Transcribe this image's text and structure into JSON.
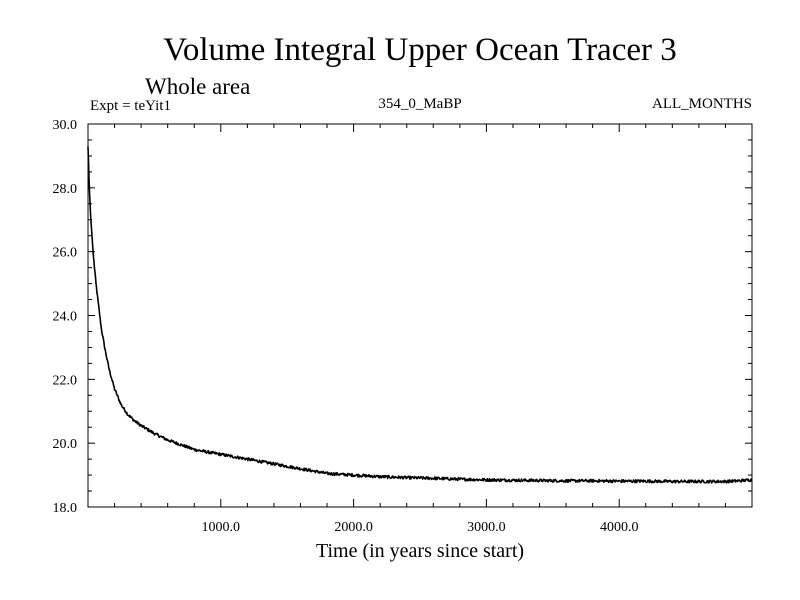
{
  "chart_data": {
    "type": "line",
    "title": "Volume Integral Upper Ocean Tracer 3",
    "subtitle": "Whole area",
    "experiment": "Expt = teYit1",
    "run_label": "354_0_MaBP",
    "months_label": "ALL_MONTHS",
    "xlabel": "Time (in years since start)",
    "ylabel": "",
    "xlim": [
      0,
      5000
    ],
    "ylim": [
      18.0,
      30.0
    ],
    "x_ticks": [
      1000,
      2000,
      3000,
      4000
    ],
    "x_tick_labels": [
      "1000.0",
      "2000.0",
      "3000.0",
      "4000.0"
    ],
    "y_ticks": [
      18,
      20,
      22,
      24,
      26,
      28,
      30
    ],
    "y_tick_labels": [
      "18.0",
      "20.0",
      "22.0",
      "24.0",
      "26.0",
      "28.0",
      "30.0"
    ],
    "grid": false,
    "series": [
      {
        "name": "Tracer 3",
        "color": "#000000",
        "x": [
          0,
          10,
          20,
          40,
          60,
          80,
          100,
          130,
          160,
          200,
          250,
          300,
          350,
          400,
          500,
          600,
          700,
          800,
          900,
          1000,
          1200,
          1400,
          1600,
          1800,
          2000,
          2200,
          2400,
          2600,
          2800,
          3000,
          3200,
          3400,
          3600,
          3800,
          4000,
          4200,
          4400,
          4600,
          4800,
          4900,
          5000
        ],
        "y": [
          29.3,
          28.0,
          27.1,
          25.9,
          25.0,
          24.3,
          23.6,
          22.9,
          22.3,
          21.7,
          21.2,
          20.9,
          20.7,
          20.55,
          20.3,
          20.1,
          19.95,
          19.8,
          19.72,
          19.65,
          19.5,
          19.35,
          19.2,
          19.05,
          19.0,
          18.95,
          18.92,
          18.9,
          18.87,
          18.85,
          18.84,
          18.83,
          18.82,
          18.82,
          18.81,
          18.81,
          18.8,
          18.8,
          18.8,
          18.82,
          18.85
        ]
      }
    ]
  }
}
